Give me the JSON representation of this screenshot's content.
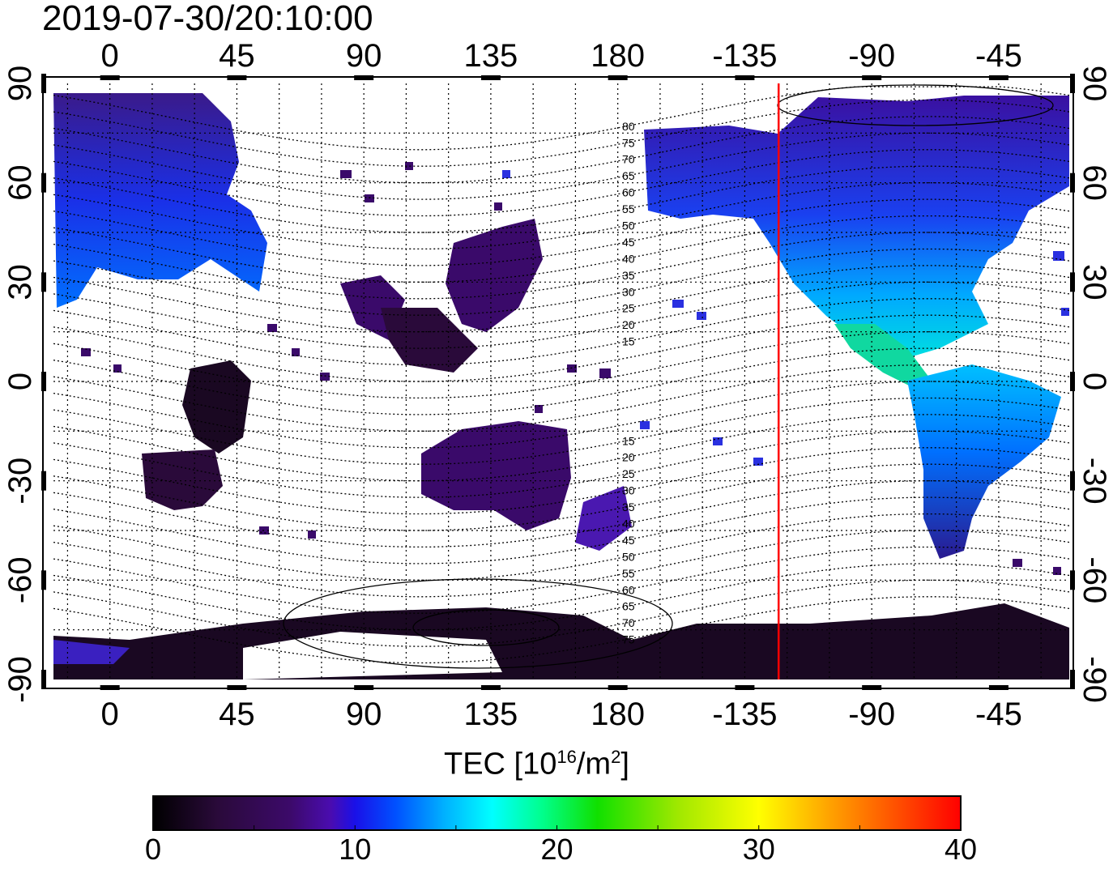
{
  "title": "2019-07-30/20:10:00",
  "map": {
    "projection": "equirectangular",
    "center_longitude": 160,
    "top_axis_labels": [
      "0",
      "45",
      "90",
      "135",
      "180",
      "-135",
      "-90",
      "-45"
    ],
    "bottom_axis_labels": [
      "0",
      "45",
      "90",
      "135",
      "180",
      "-135",
      "-90",
      "-45"
    ],
    "left_axis_labels": [
      "90",
      "60",
      "30",
      "0",
      "-30",
      "-60",
      "-90"
    ],
    "right_axis_labels": [
      "90",
      "60",
      "30",
      "0",
      "-30",
      "-60",
      "-90"
    ],
    "contour_labels_north": [
      "80",
      "75",
      "70",
      "65",
      "60",
      "55",
      "50",
      "45",
      "40",
      "35",
      "30",
      "25",
      "20",
      "15"
    ],
    "contour_labels_south": [
      "15",
      "20",
      "25",
      "30",
      "35",
      "40",
      "45",
      "50",
      "55",
      "60",
      "65",
      "70",
      "75"
    ],
    "red_line_longitude": -123,
    "red_line_color": "#ff0000"
  },
  "colorbar": {
    "label_main": "TEC  [10",
    "label_sup": "16",
    "label_unit": "/m",
    "label_sup2": "2",
    "label_close": "]",
    "ticks": [
      "0",
      "10",
      "20",
      "30",
      "40"
    ],
    "range": [
      0,
      40
    ],
    "colors": [
      "#000000",
      "#2a0a3a",
      "#3c0a6a",
      "#4a0cb0",
      "#1a10e8",
      "#0050ff",
      "#00b0ff",
      "#00ffff",
      "#00ff90",
      "#10e000",
      "#a0e800",
      "#ffff00",
      "#ffa000",
      "#ff5000",
      "#ff0000"
    ]
  }
}
